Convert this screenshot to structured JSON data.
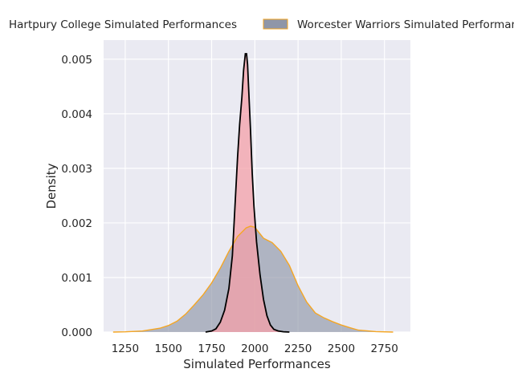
{
  "chart_data": {
    "type": "area",
    "xlabel": "Simulated Performances",
    "ylabel": "Density",
    "xlim": [
      1125,
      2900
    ],
    "ylim": [
      0,
      0.00535
    ],
    "x_ticks": [
      1250,
      1500,
      1750,
      2000,
      2250,
      2500,
      2750
    ],
    "y_ticks": [
      0.0,
      0.001,
      0.002,
      0.003,
      0.004,
      0.005
    ],
    "x_tick_labels": [
      "1250",
      "1500",
      "1750",
      "2000",
      "2250",
      "2500",
      "2750"
    ],
    "y_tick_labels": [
      "0.000",
      "0.001",
      "0.002",
      "0.003",
      "0.004",
      "0.005"
    ],
    "grid": true,
    "background": "#eaeaf2",
    "legend_position": "top, outside",
    "series": [
      {
        "name": "Hartpury College Simulated Performances",
        "color": "#000000",
        "fill": "#f4a0a8",
        "x": [
          1715,
          1750,
          1775,
          1800,
          1825,
          1850,
          1870,
          1885,
          1900,
          1912,
          1925,
          1935,
          1945,
          1952,
          1958,
          1965,
          1975,
          1985,
          1995,
          2010,
          2030,
          2050,
          2070,
          2090,
          2110,
          2135,
          2165,
          2200
        ],
        "y": [
          0,
          2e-05,
          6e-05,
          0.00018,
          0.0004,
          0.0008,
          0.0014,
          0.0023,
          0.0032,
          0.0038,
          0.0043,
          0.0048,
          0.0051,
          0.0051,
          0.0049,
          0.0044,
          0.0037,
          0.0029,
          0.0023,
          0.00165,
          0.00105,
          0.0006,
          0.0003,
          0.00013,
          5e-05,
          2e-05,
          5e-06,
          0
        ]
      },
      {
        "name": "Worcester Warriors Simulated Performances",
        "color": "#f5a623",
        "fill": "#8f96a8",
        "x": [
          1180,
          1250,
          1350,
          1450,
          1500,
          1550,
          1600,
          1650,
          1700,
          1750,
          1800,
          1850,
          1900,
          1950,
          1975,
          2000,
          2025,
          2050,
          2075,
          2100,
          2150,
          2200,
          2250,
          2300,
          2350,
          2400,
          2450,
          2500,
          2550,
          2600,
          2700,
          2800
        ],
        "y": [
          0,
          5e-06,
          2e-05,
          7e-05,
          0.00012,
          0.0002,
          0.00033,
          0.0005,
          0.00068,
          0.0009,
          0.00117,
          0.00148,
          0.00175,
          0.00191,
          0.00194,
          0.00192,
          0.00182,
          0.00172,
          0.00168,
          0.00164,
          0.00148,
          0.00122,
          0.00085,
          0.00055,
          0.00035,
          0.00026,
          0.00019,
          0.00013,
          8e-05,
          3.5e-05,
          8e-06,
          0
        ]
      }
    ]
  }
}
